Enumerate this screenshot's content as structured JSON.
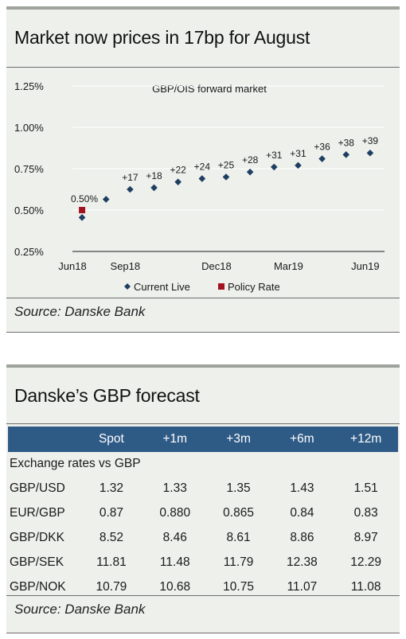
{
  "chart_panel": {
    "title": "Market now prices in 17bp for August",
    "source": "Source: Danske Bank"
  },
  "chart_data": {
    "type": "scatter",
    "title": "Market now prices in 17bp for August",
    "subtitle": "GBP/OIS forward market",
    "y_ticks": [
      "1.25%",
      "1.00%",
      "0.75%",
      "0.50%",
      "0.25%"
    ],
    "y_tick_values": [
      1.25,
      1.0,
      0.75,
      0.5,
      0.25
    ],
    "x_ticks": [
      "Jun18",
      "Sep18",
      "Dec18",
      "Mar19",
      "Jun19"
    ],
    "ylim": [
      0.25,
      1.25
    ],
    "xlim": [
      0,
      13
    ],
    "x_tick_positions": [
      0,
      2.2,
      6,
      9,
      12.2
    ],
    "legend": [
      "Current Live",
      "Policy Rate"
    ],
    "legend_position": "bottom",
    "colors": {
      "current_live": "#1f3f60",
      "policy_rate": "#a3121f"
    },
    "series": [
      {
        "name": "Current Live",
        "x": [
          0.4,
          1.4,
          2.4,
          3.4,
          4.4,
          5.4,
          6.4,
          7.4,
          8.4,
          9.4,
          10.4,
          11.4,
          12.4
        ],
        "values": [
          0.455,
          0.565,
          0.625,
          0.635,
          0.67,
          0.69,
          0.7,
          0.73,
          0.76,
          0.77,
          0.81,
          0.835,
          0.845
        ],
        "labels": [
          "",
          "",
          "+17",
          "+18",
          "+22",
          "+24",
          "+25",
          "+28",
          "+31",
          "+31",
          "+36",
          "+38",
          "+39"
        ]
      },
      {
        "name": "Policy Rate",
        "x": [
          0.4
        ],
        "values": [
          0.5
        ],
        "labels": [
          "0.50%"
        ]
      }
    ]
  },
  "forecast": {
    "title": "Danske’s GBP forecast",
    "headers": [
      "",
      "Spot",
      "+1m",
      "+3m",
      "+6m",
      "+12m"
    ],
    "section_label": "Exchange rates vs GBP",
    "rows": [
      {
        "label": "GBP/USD",
        "values": [
          "1.32",
          "1.33",
          "1.35",
          "1.43",
          "1.51"
        ]
      },
      {
        "label": "EUR/GBP",
        "values": [
          "0.87",
          "0.880",
          "0.865",
          "0.84",
          "0.83"
        ]
      },
      {
        "label": "GBP/DKK",
        "values": [
          "8.52",
          "8.46",
          "8.61",
          "8.86",
          "8.97"
        ]
      },
      {
        "label": "GBP/SEK",
        "values": [
          "11.81",
          "11.48",
          "11.79",
          "12.38",
          "12.29"
        ]
      },
      {
        "label": "GBP/NOK",
        "values": [
          "10.79",
          "10.68",
          "10.75",
          "11.07",
          "11.08"
        ]
      }
    ],
    "source": "Source: Danske Bank"
  }
}
